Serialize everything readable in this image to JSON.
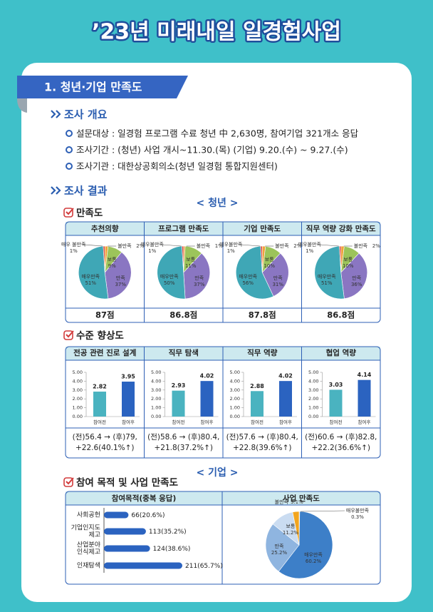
{
  "title": "’23년 미래내일 일경험사업",
  "section": "1. 청년·기업 만족도",
  "overview": {
    "heading": "조사 개요",
    "items": [
      "설문대상 : 일경험 프로그램 수료 청년 中 2,630명, 참여기업 321개소 응답",
      "조사기간 : (청년) 사업 개시~11.30.(목)  (기업) 9.20.(수) ~ 9.27.(수)",
      "조사기관 : 대한상공회의소(청년 일경험 통합지원센터)"
    ]
  },
  "results": {
    "heading": "조사 결과",
    "youth_label": "< 청년 >",
    "satisfaction": {
      "heading": "만족도",
      "charts": [
        {
          "type": "pie",
          "title": "추천의향",
          "categories": [
            "불만족",
            "보통",
            "만족",
            "매우만족",
            "매우 불만족"
          ],
          "values": [
            2,
            9,
            37,
            51,
            1
          ],
          "value_labels": [
            "2%",
            "9%",
            "37%",
            "51%",
            "1%"
          ],
          "colors": [
            "#f0a33c",
            "#9cc45a",
            "#8a76c2",
            "#3fa7b6",
            "#d8403a"
          ],
          "score": "87점"
        },
        {
          "type": "pie",
          "title": "프로그램 만족도",
          "categories": [
            "불만족",
            "보통",
            "만족",
            "매우만족",
            "매우불만족"
          ],
          "values": [
            1,
            11,
            37,
            50,
            1
          ],
          "value_labels": [
            "1%",
            "11%",
            "37%",
            "50%",
            "1%"
          ],
          "colors": [
            "#f0a33c",
            "#9cc45a",
            "#8a76c2",
            "#3fa7b6",
            "#d8403a"
          ],
          "score": "86.8점"
        },
        {
          "type": "pie",
          "title": "기업 만족도",
          "categories": [
            "불만족",
            "보통",
            "만족",
            "매우만족",
            "매우불만족"
          ],
          "values": [
            2,
            10,
            31,
            56,
            1
          ],
          "value_labels": [
            "2%",
            "10%",
            "31%",
            "56%",
            "1%"
          ],
          "colors": [
            "#f0a33c",
            "#9cc45a",
            "#8a76c2",
            "#3fa7b6",
            "#d8403a"
          ],
          "score": "87.8점"
        },
        {
          "type": "pie",
          "title": "직무 역량 강화 만족도",
          "categories": [
            "불만족",
            "보통",
            "만족",
            "매우만족",
            "매우불만족"
          ],
          "values": [
            2,
            10,
            36,
            51,
            1
          ],
          "value_labels": [
            "2%",
            "10%",
            "36%",
            "51%",
            "1%"
          ],
          "colors": [
            "#f0a33c",
            "#9cc45a",
            "#8a76c2",
            "#3fa7b6",
            "#d8403a"
          ],
          "score": "86.8점"
        }
      ]
    },
    "improvement": {
      "heading": "수준 향상도",
      "charts": [
        {
          "type": "bar",
          "title": "전공 관련 진로 설계",
          "categories": [
            "참여전",
            "참여후"
          ],
          "values": [
            2.82,
            3.95
          ],
          "colors": [
            "#4ab3c0",
            "#2b63c0"
          ],
          "ylim": [
            0,
            5
          ],
          "yticks": [
            {
              "value": 0,
              "label": "0.00"
            },
            {
              "value": 1,
              "label": "1.00"
            },
            {
              "value": 2,
              "label": "2.00"
            },
            {
              "value": 3,
              "label": "3.00"
            },
            {
              "value": 4,
              "label": "4.00"
            },
            {
              "value": 5,
              "label": "5.00"
            }
          ],
          "note": [
            "(전)56.4 → (후)79,",
            "+22.6(40.1%↑)"
          ]
        },
        {
          "type": "bar",
          "title": "직무 탐색",
          "categories": [
            "참여전",
            "참여후"
          ],
          "values": [
            2.93,
            4.02
          ],
          "colors": [
            "#4ab3c0",
            "#2b63c0"
          ],
          "ylim": [
            0,
            5
          ],
          "yticks": [
            {
              "value": 0,
              "label": "0.00"
            },
            {
              "value": 1,
              "label": "1.00"
            },
            {
              "value": 2,
              "label": "2.00"
            },
            {
              "value": 3,
              "label": "3.00"
            },
            {
              "value": 4,
              "label": "4.00"
            },
            {
              "value": 5,
              "label": "5.00"
            }
          ],
          "note": [
            "(전)58.6 → (후)80.4,",
            "+21.8(37.2%↑)"
          ]
        },
        {
          "type": "bar",
          "title": "직무 역량",
          "categories": [
            "참여전",
            "참여후"
          ],
          "values": [
            2.88,
            4.02
          ],
          "colors": [
            "#4ab3c0",
            "#2b63c0"
          ],
          "ylim": [
            0,
            5
          ],
          "yticks": [
            {
              "value": 0,
              "label": "0.00"
            },
            {
              "value": 1,
              "label": "1.00"
            },
            {
              "value": 2,
              "label": "2.00"
            },
            {
              "value": 3,
              "label": "3.00"
            },
            {
              "value": 4,
              "label": "4.00"
            },
            {
              "value": 5,
              "label": "5.00"
            }
          ],
          "note": [
            "(전)57.6 → (후)80.4,",
            "+22.8(39.6%↑)"
          ]
        },
        {
          "type": "bar",
          "title": "협업 역량",
          "categories": [
            "참여전",
            "참여후"
          ],
          "values": [
            3.03,
            4.14
          ],
          "colors": [
            "#4ab3c0",
            "#2b63c0"
          ],
          "ylim": [
            0,
            5
          ],
          "yticks": [
            {
              "value": 0,
              "label": "0.00"
            },
            {
              "value": 1,
              "label": "1.00"
            },
            {
              "value": 2,
              "label": "2.00"
            },
            {
              "value": 3,
              "label": "3.00"
            },
            {
              "value": 4,
              "label": "4.00"
            },
            {
              "value": 5,
              "label": "5.00"
            }
          ],
          "note": [
            "(전)60.6 → (후)82.8,",
            "+22.2(36.6%↑)"
          ]
        }
      ]
    },
    "company_label": "< 기업 >",
    "company": {
      "heading": "참여 목적 및 사업 만족도",
      "purpose": {
        "type": "hbar",
        "title": "참여목적(중복 응답)",
        "categories": [
          [
            "사회공헌"
          ],
          [
            "기업인지도",
            "제고"
          ],
          [
            "산업분야",
            "인식제고"
          ],
          [
            "인재탐색"
          ]
        ],
        "values": [
          66,
          113,
          124,
          211
        ],
        "value_labels": [
          "66(20.6%)",
          "113(35.2%)",
          "124(38.6%)",
          "211(65.7%)"
        ],
        "color": "#2b63c0"
      },
      "satisfaction": {
        "type": "pie",
        "title": "사업 만족도",
        "categories": [
          "매우불만족",
          "매우만족",
          "만족",
          "보통",
          "불만족"
        ],
        "values": [
          0.3,
          60.2,
          25.2,
          11.2,
          3.1
        ],
        "value_labels": [
          "0.3%",
          "60.2%",
          "25.2%",
          "11.2%",
          "3.1%"
        ],
        "colors": [
          "#9a9a9a",
          "#3d7fc8",
          "#8fb5e0",
          "#cadcf1",
          "#f2a51f"
        ]
      }
    }
  }
}
